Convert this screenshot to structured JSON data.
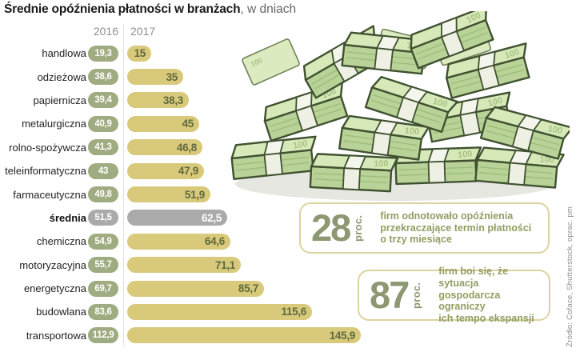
{
  "title": {
    "bold": "Średnie opóźnienia płatności w branżach",
    "rest": ", w dniach"
  },
  "columns": {
    "y2016": "2016",
    "y2017": "2017"
  },
  "rows": [
    {
      "label": "handlowa",
      "v2016": "19,3",
      "v2017": "15",
      "value_2017": 15,
      "highlight": false
    },
    {
      "label": "odzieżowa",
      "v2016": "38,6",
      "v2017": "35",
      "value_2017": 35,
      "highlight": false
    },
    {
      "label": "papiernicza",
      "v2016": "39,4",
      "v2017": "38,3",
      "value_2017": 38.3,
      "highlight": false
    },
    {
      "label": "metalurgiczna",
      "v2016": "40,9",
      "v2017": "45",
      "value_2017": 45,
      "highlight": false
    },
    {
      "label": "rolno-spożywcza",
      "v2016": "41,3",
      "v2017": "46,8",
      "value_2017": 46.8,
      "highlight": false
    },
    {
      "label": "teleinformatyczna",
      "v2016": "43",
      "v2017": "47,9",
      "value_2017": 47.9,
      "highlight": false
    },
    {
      "label": "farmaceutyczna",
      "v2016": "49,8",
      "v2017": "51,9",
      "value_2017": 51.9,
      "highlight": false
    },
    {
      "label": "średnia",
      "v2016": "51,5",
      "v2017": "62,5",
      "value_2017": 62.5,
      "highlight": true
    },
    {
      "label": "chemiczna",
      "v2016": "54,9",
      "v2017": "64,6",
      "value_2017": 64.6,
      "highlight": false
    },
    {
      "label": "motoryzacyjna",
      "v2016": "55,7",
      "v2017": "71,1",
      "value_2017": 71.1,
      "highlight": false
    },
    {
      "label": "energetyczna",
      "v2016": "69,7",
      "v2017": "85,7",
      "value_2017": 85.7,
      "highlight": false
    },
    {
      "label": "budowlana",
      "v2016": "83,6",
      "v2017": "115,6",
      "value_2017": 115.6,
      "highlight": false
    },
    {
      "label": "transportowa",
      "v2016": "112,9",
      "v2017": "145,9",
      "value_2017": 145.9,
      "highlight": false
    }
  ],
  "callouts": [
    {
      "number": "28",
      "unit": "proc.",
      "text": "firm odnotowało opóźnienia\nprzekraczające termin płatności\no trzy miesiące"
    },
    {
      "number": "87",
      "unit": "proc.",
      "text": "firm boi się, że sytuacja\ngospodarcza ograniczy\nich tempo ekspansji"
    }
  ],
  "source": "Źródło: Coface, Shutterstock, oprac. pm",
  "money_icon": "money-stacks-100",
  "colors": {
    "pill": "#9fab80",
    "bar": "#d9c97b",
    "bartext": "#5f6a3d",
    "gray": "#aaaaaa",
    "sage": "#8d9873",
    "olive": "#909e62",
    "box-border": "#ddd2a0"
  },
  "chart_data": {
    "type": "bar",
    "orientation": "horizontal",
    "title": "Średnie opóźnienia płatności w branżach, w dniach",
    "categories": [
      "handlowa",
      "odzieżowa",
      "papiernicza",
      "metalurgiczna",
      "rolno-spożywcza",
      "teleinformatyczna",
      "farmaceutyczna",
      "średnia",
      "chemiczna",
      "motoryzacyjna",
      "energetyczna",
      "budowlana",
      "transportowa"
    ],
    "series": [
      {
        "name": "2016",
        "values": [
          19.3,
          38.6,
          39.4,
          40.9,
          41.3,
          43,
          49.8,
          51.5,
          54.9,
          55.7,
          69.7,
          83.6,
          112.9
        ]
      },
      {
        "name": "2017",
        "values": [
          15,
          35,
          38.3,
          45,
          46.8,
          47.9,
          51.9,
          62.5,
          64.6,
          71.1,
          85.7,
          115.6,
          145.9
        ]
      }
    ],
    "xlabel": "dni",
    "ylabel": "branża",
    "xlim": [
      0,
      150
    ],
    "grid": false,
    "legend_position": "top (column headers 2016 | 2017)",
    "highlighted_category": "średnia",
    "annotations": [
      "28 proc. firm odnotowało opóźnienia przekraczające termin płatności o trzy miesiące",
      "87 proc. firm boi się, że sytuacja gospodarcza ograniczy ich tempo ekspansji"
    ]
  }
}
